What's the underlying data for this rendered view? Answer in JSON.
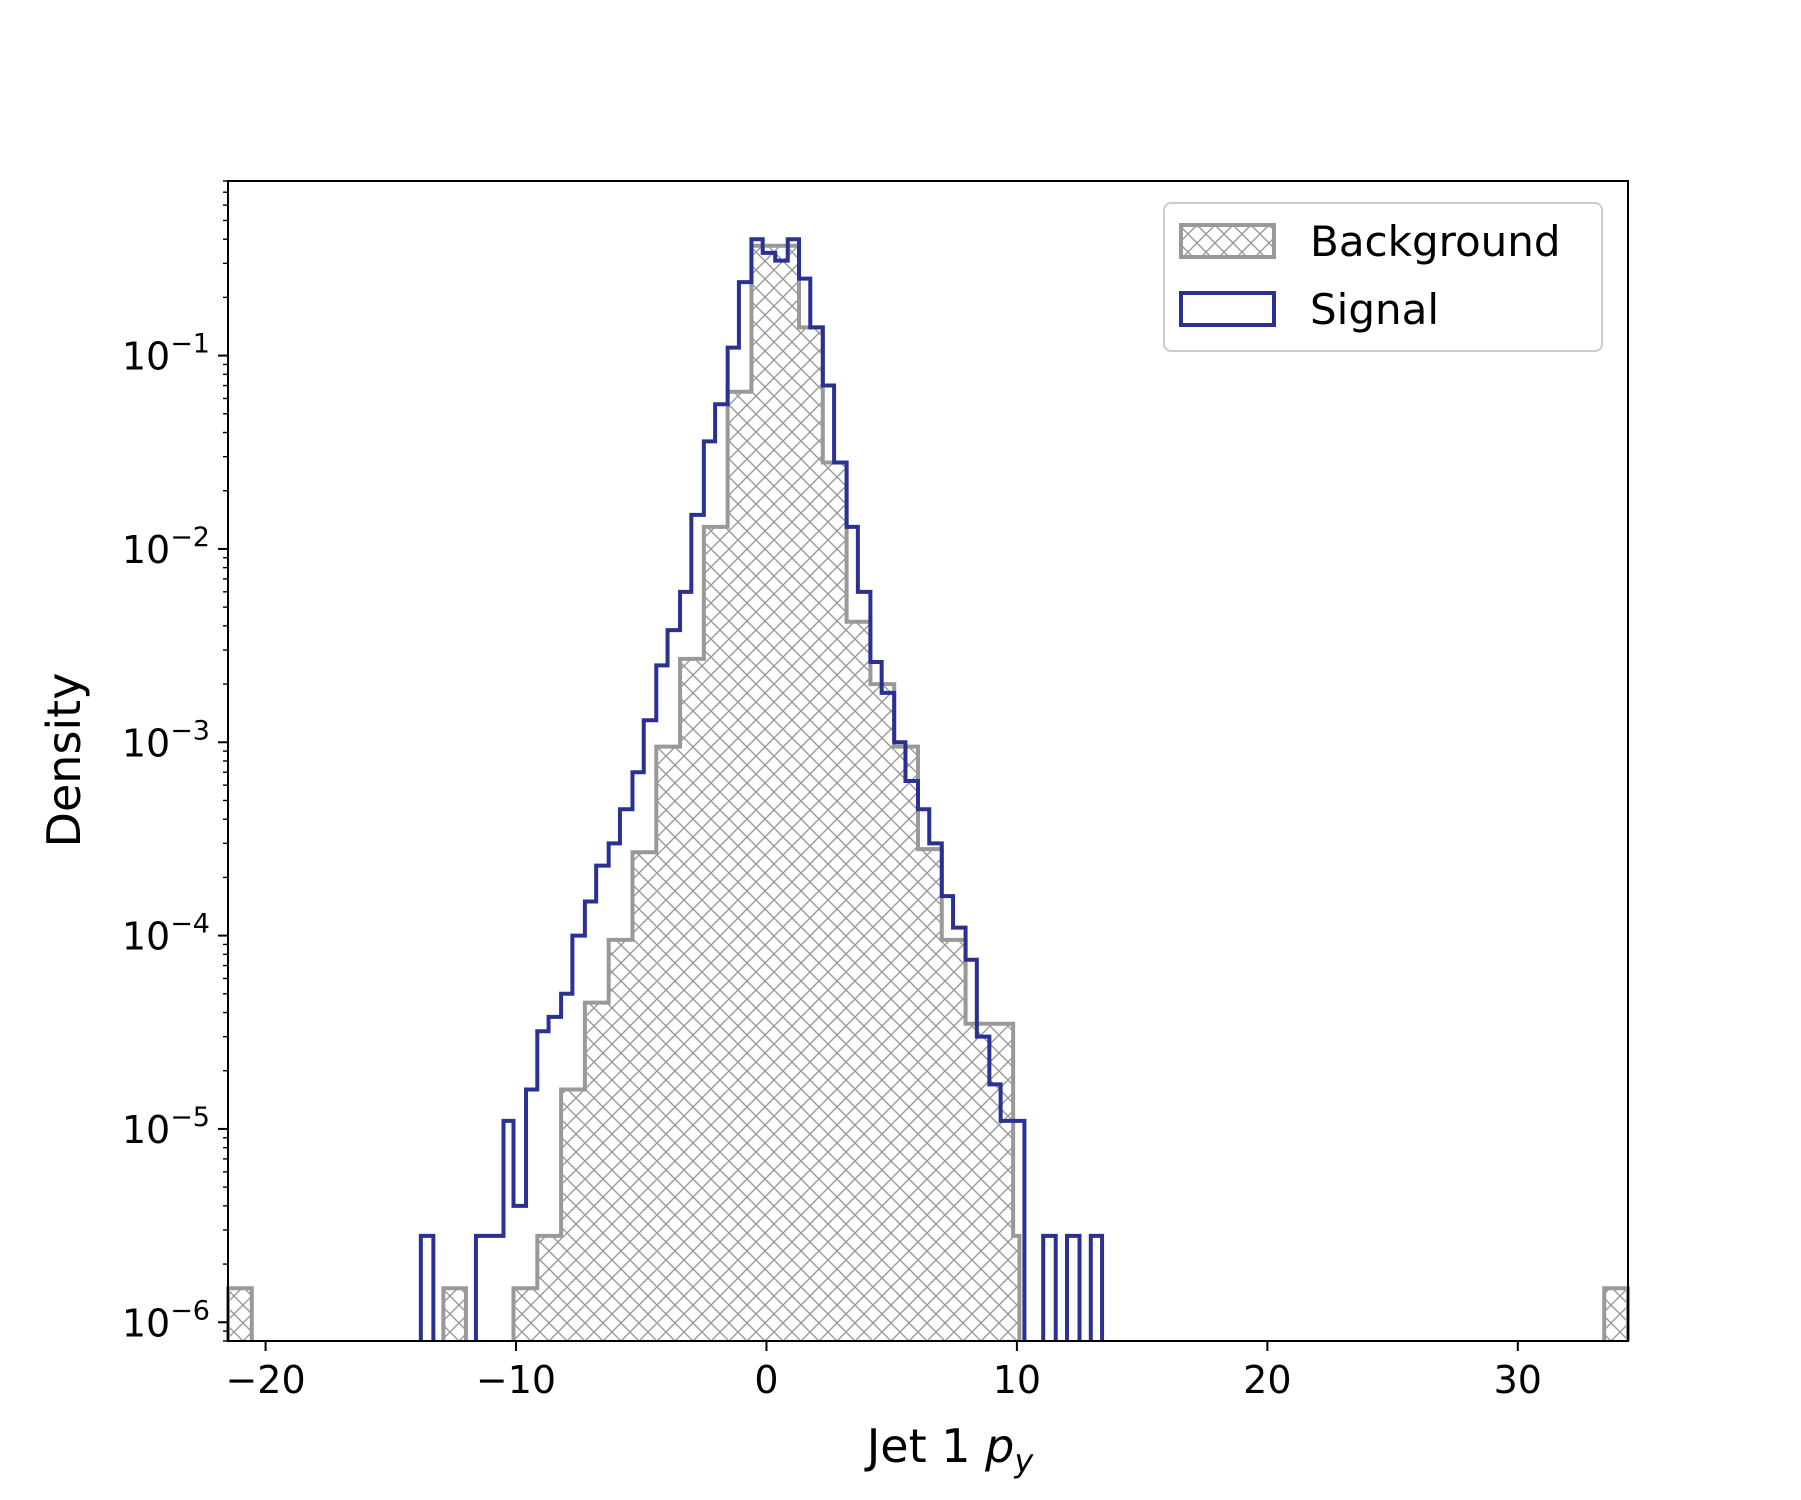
{
  "chart_data": {
    "type": "histogram",
    "title": "",
    "xlabel_main": "Jet 1 ",
    "xlabel_italic": "p",
    "xlabel_sub": "y",
    "ylabel": "Density",
    "yscale": "log",
    "xlim": [
      -21.5,
      34.4
    ],
    "ylim": [
      8e-07,
      0.8
    ],
    "xticks": [
      -20,
      -10,
      0,
      10,
      20,
      30
    ],
    "xtick_labels": [
      "−20",
      "−10",
      "0",
      "10",
      "20",
      "30"
    ],
    "yticks": [
      1e-06,
      1e-05,
      0.0001,
      0.001,
      0.01,
      0.1
    ],
    "ytick_base": [
      "10",
      "10",
      "10",
      "10",
      "10",
      "10"
    ],
    "ytick_exp": [
      "−6",
      "−5",
      "−4",
      "−3",
      "−2",
      "−1"
    ],
    "legend_position": "top-right",
    "series": [
      {
        "name": "Background",
        "style": "hatched",
        "color": "#999999",
        "bins": [
          [
            -21.5,
            -20.55,
            1.5e-06
          ],
          [
            -12.9,
            -12.0,
            1.5e-06
          ],
          [
            -10.1,
            -9.15,
            1.5e-06
          ],
          [
            -9.15,
            -8.2,
            2.8e-06
          ],
          [
            -8.2,
            -7.25,
            1.6e-05
          ],
          [
            -7.25,
            -6.3,
            4.5e-05
          ],
          [
            -6.3,
            -5.35,
            9.5e-05
          ],
          [
            -5.35,
            -4.4,
            0.00027
          ],
          [
            -4.4,
            -3.45,
            0.00095
          ],
          [
            -3.45,
            -2.5,
            0.0027
          ],
          [
            -2.5,
            -1.55,
            0.013
          ],
          [
            -1.55,
            -0.6,
            0.065
          ],
          [
            -0.6,
            0.35,
            0.37
          ],
          [
            0.35,
            1.3,
            0.37
          ],
          [
            1.3,
            2.25,
            0.14
          ],
          [
            2.25,
            3.2,
            0.028
          ],
          [
            3.2,
            4.15,
            0.0042
          ],
          [
            4.15,
            5.1,
            0.002
          ],
          [
            5.1,
            6.05,
            0.00095
          ],
          [
            6.05,
            7.0,
            0.00028
          ],
          [
            7.0,
            7.95,
            9.5e-05
          ],
          [
            7.95,
            8.9,
            3.5e-05
          ],
          [
            8.9,
            9.85,
            3.5e-05
          ],
          [
            9.85,
            10.1,
            2.8e-06
          ],
          [
            33.45,
            34.4,
            1.5e-06
          ]
        ]
      },
      {
        "name": "Signal",
        "style": "step",
        "color": "#2a3192",
        "bins": [
          [
            -13.8,
            -13.3,
            2.8e-06
          ],
          [
            -11.6,
            -10.5,
            2.8e-06
          ],
          [
            -10.5,
            -10.1,
            1.1e-05
          ],
          [
            -10.1,
            -9.6,
            4e-06
          ],
          [
            -9.6,
            -9.15,
            1.6e-05
          ],
          [
            -9.15,
            -8.7,
            3.2e-05
          ],
          [
            -8.7,
            -8.2,
            3.8e-05
          ],
          [
            -8.2,
            -7.75,
            5e-05
          ],
          [
            -7.75,
            -7.25,
            0.0001
          ],
          [
            -7.25,
            -6.8,
            0.00015
          ],
          [
            -6.8,
            -6.3,
            0.00023
          ],
          [
            -6.3,
            -5.85,
            0.0003
          ],
          [
            -5.85,
            -5.35,
            0.00045
          ],
          [
            -5.35,
            -4.9,
            0.0007
          ],
          [
            -4.9,
            -4.4,
            0.0013
          ],
          [
            -4.4,
            -3.95,
            0.0025
          ],
          [
            -3.95,
            -3.45,
            0.0038
          ],
          [
            -3.45,
            -3.0,
            0.006
          ],
          [
            -3.0,
            -2.5,
            0.015
          ],
          [
            -2.5,
            -2.05,
            0.036
          ],
          [
            -2.05,
            -1.55,
            0.056
          ],
          [
            -1.55,
            -1.1,
            0.11
          ],
          [
            -1.1,
            -0.6,
            0.24
          ],
          [
            -0.6,
            -0.15,
            0.4
          ],
          [
            -0.15,
            0.35,
            0.34
          ],
          [
            0.35,
            0.85,
            0.31
          ],
          [
            0.85,
            1.3,
            0.4
          ],
          [
            1.3,
            1.75,
            0.25
          ],
          [
            1.75,
            2.25,
            0.14
          ],
          [
            2.25,
            2.7,
            0.07
          ],
          [
            2.7,
            3.2,
            0.028
          ],
          [
            3.2,
            3.65,
            0.013
          ],
          [
            3.65,
            4.15,
            0.006
          ],
          [
            4.15,
            4.6,
            0.0026
          ],
          [
            4.6,
            5.1,
            0.0018
          ],
          [
            5.1,
            5.55,
            0.001
          ],
          [
            5.55,
            6.05,
            0.00063
          ],
          [
            6.05,
            6.5,
            0.00045
          ],
          [
            6.5,
            7.0,
            0.0003
          ],
          [
            7.0,
            7.45,
            0.00016
          ],
          [
            7.45,
            7.95,
            0.00011
          ],
          [
            7.95,
            8.4,
            7.5e-05
          ],
          [
            8.4,
            8.9,
            3e-05
          ],
          [
            8.9,
            9.35,
            1.7e-05
          ],
          [
            9.35,
            9.85,
            1.1e-05
          ],
          [
            9.85,
            10.3,
            1.1e-05
          ],
          [
            11.05,
            11.55,
            2.8e-06
          ],
          [
            12.0,
            12.5,
            2.8e-06
          ],
          [
            12.95,
            13.4,
            2.8e-06
          ]
        ]
      }
    ]
  }
}
